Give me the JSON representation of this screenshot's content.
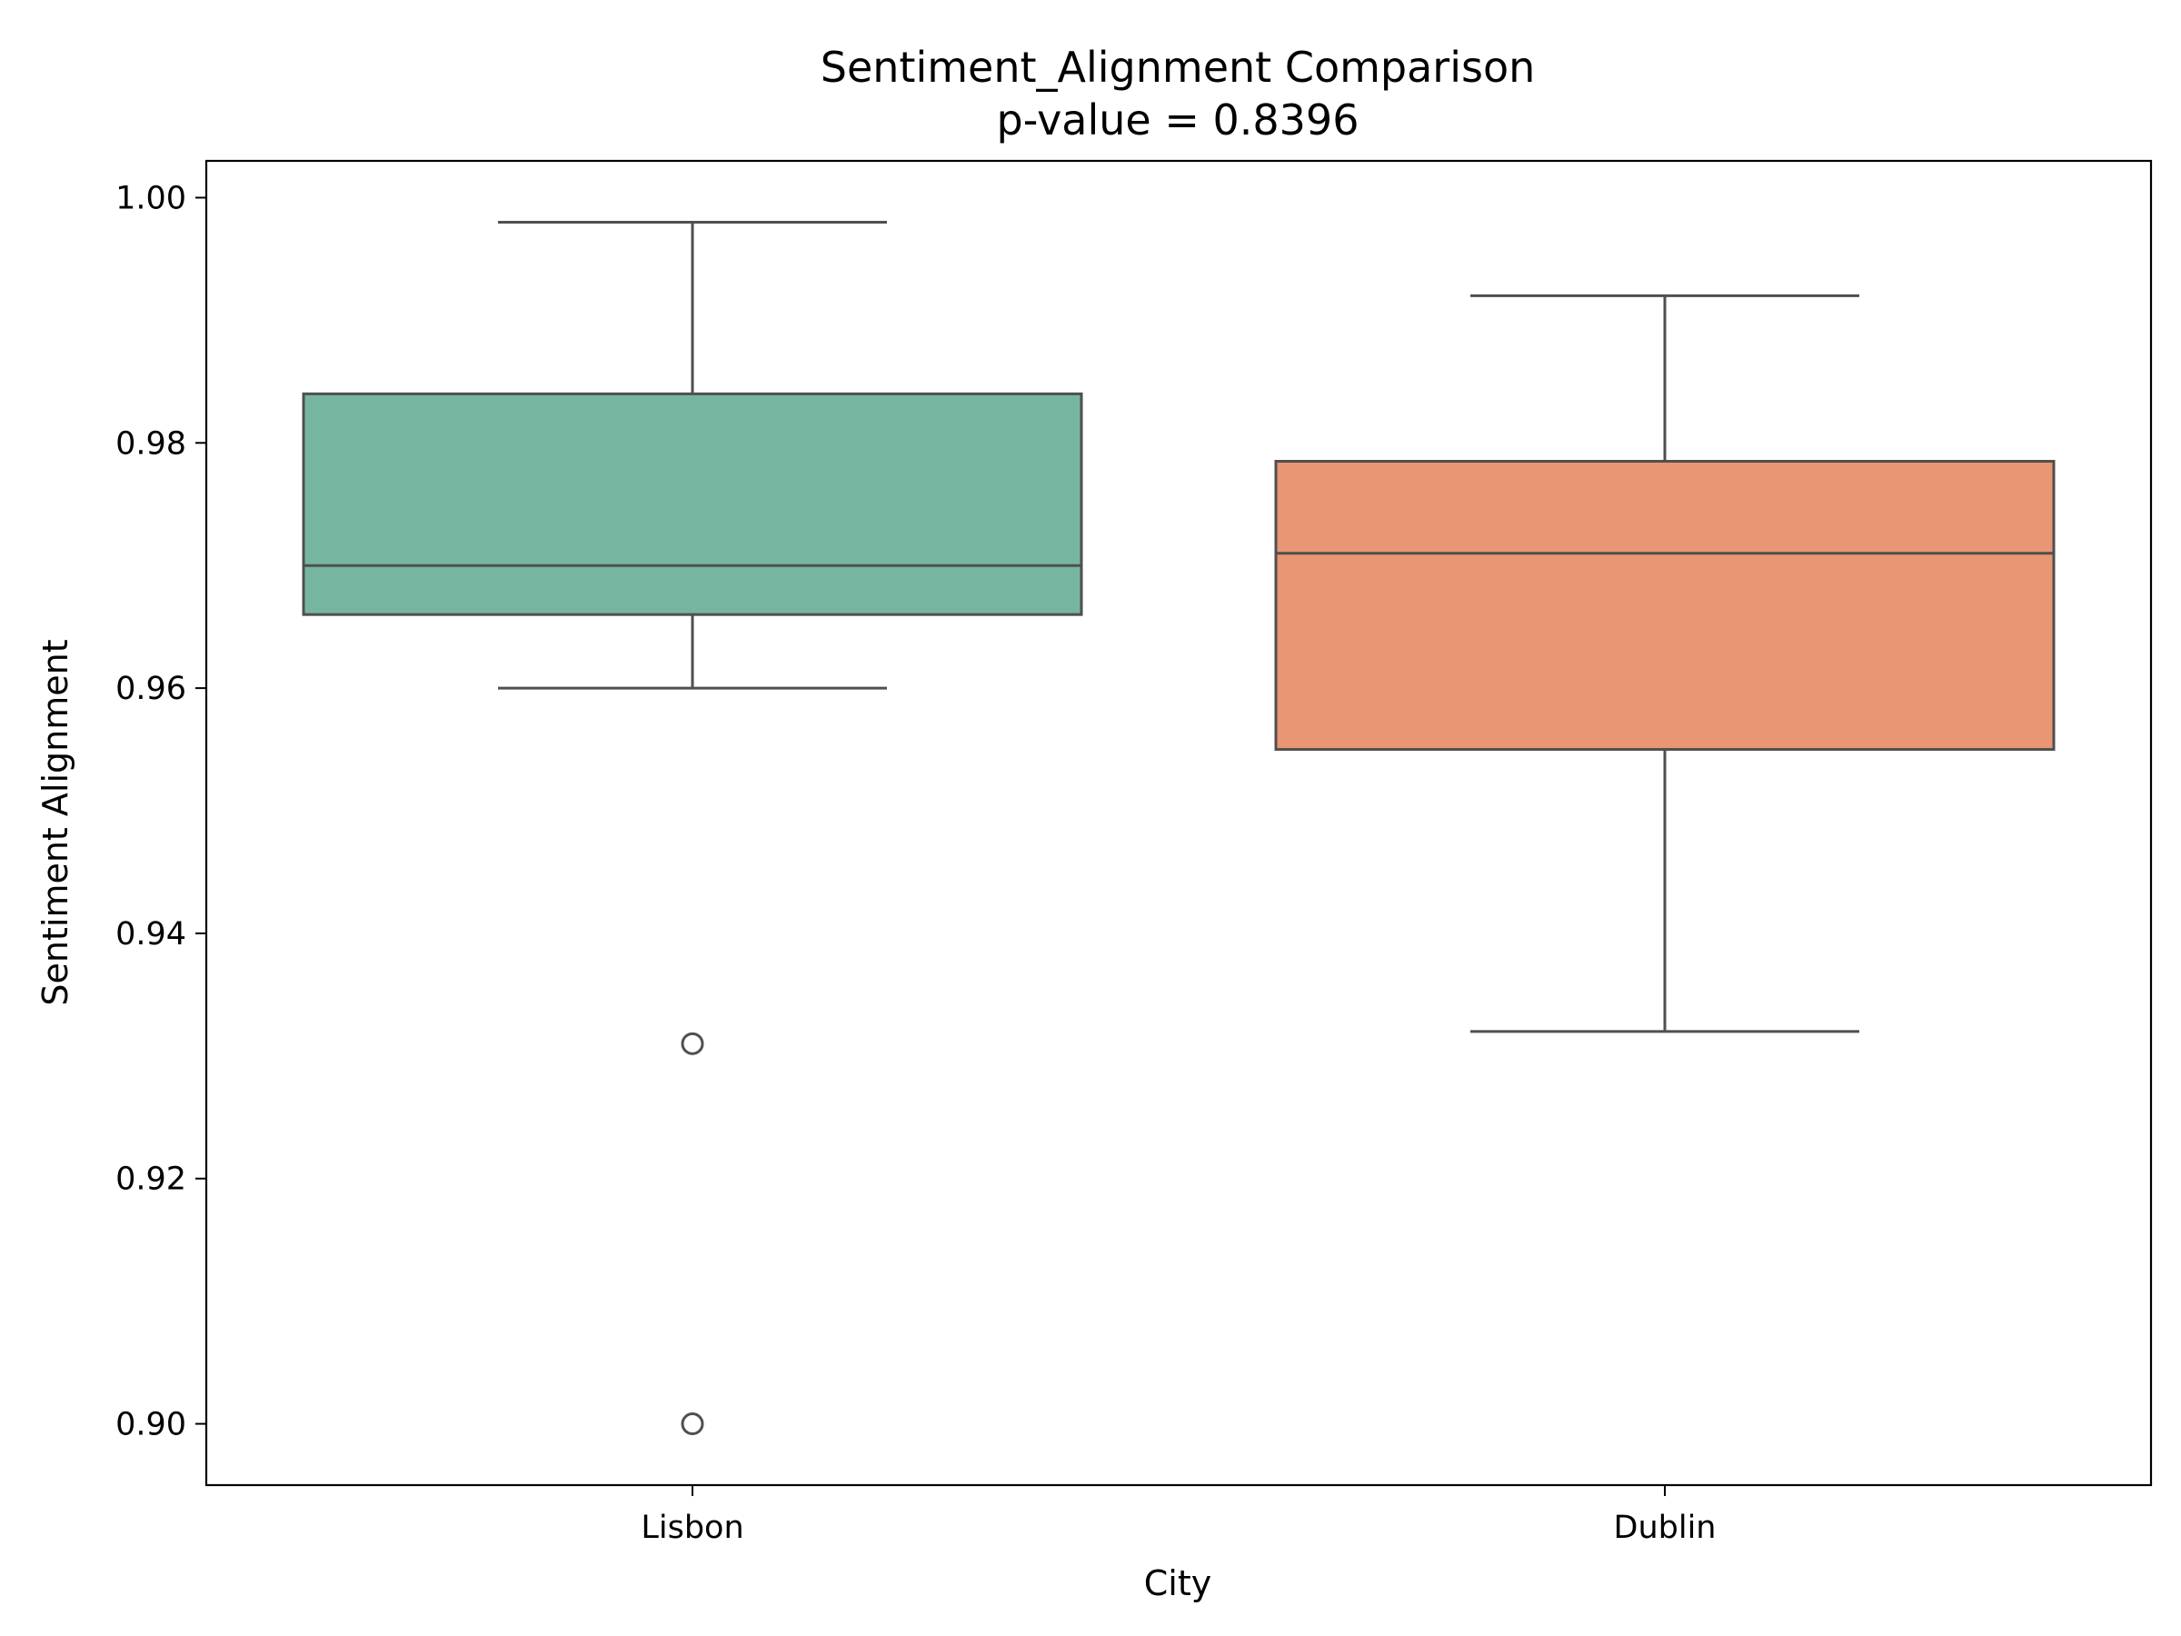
{
  "chart_data": {
    "type": "box",
    "title": "Sentiment_Alignment Comparison",
    "subtitle": "p-value = 0.8396",
    "xlabel": "City",
    "ylabel": "Sentiment Alignment",
    "ylim": [
      0.895,
      1.003
    ],
    "yticks": [
      "0.90",
      "0.92",
      "0.94",
      "0.96",
      "0.98",
      "1.00"
    ],
    "categories": [
      "Lisbon",
      "Dublin"
    ],
    "boxes": [
      {
        "category": "Lisbon",
        "whisker_low": 0.96,
        "q1": 0.966,
        "median": 0.97,
        "q3": 0.984,
        "whisker_high": 0.998,
        "outliers": [
          0.931,
          0.9
        ],
        "color": "#76b6a0"
      },
      {
        "category": "Dublin",
        "whisker_low": 0.932,
        "q1": 0.955,
        "median": 0.971,
        "q3": 0.9785,
        "whisker_high": 0.992,
        "outliers": [],
        "color": "#e89674"
      }
    ],
    "grid": false,
    "legend": "none",
    "line_color": "#4f4f4f"
  }
}
